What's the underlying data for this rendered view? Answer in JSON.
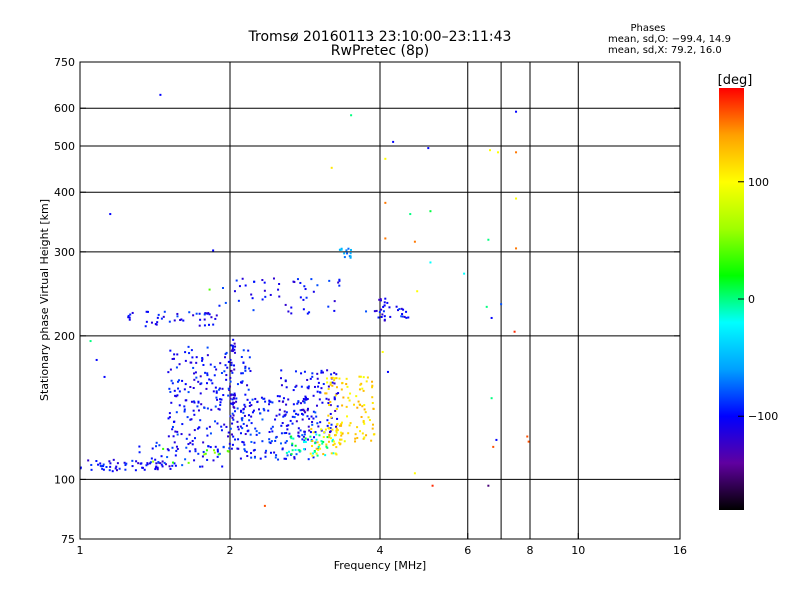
{
  "chart_data": {
    "type": "scatter",
    "title": "Tromsø 20160113 23:10:00–23:11:43",
    "subtitle": "RwPretec (8p)",
    "xlabel": "Frequency [MHz]",
    "ylabel": "Stationary phase Virtual Height [km]",
    "x_scale": "log",
    "y_scale": "log",
    "xlim": [
      1,
      16
    ],
    "ylim": [
      75,
      750
    ],
    "x_ticks": [
      1,
      2,
      4,
      6,
      8,
      10,
      16
    ],
    "x_tick_labels": [
      "1",
      "2",
      "4",
      "6",
      "8",
      "10",
      "16"
    ],
    "x_grid": [
      2,
      4,
      6,
      7,
      8,
      10
    ],
    "y_ticks": [
      75,
      100,
      200,
      300,
      400,
      500,
      600,
      750
    ],
    "y_tick_labels": [
      "75",
      "100",
      "200",
      "300",
      "400",
      "500",
      "600",
      "750"
    ],
    "y_grid": [
      100,
      200,
      300,
      400,
      500,
      600
    ],
    "grid": true,
    "stats": {
      "heading": "Phases",
      "line_o": "mean, sd,O: −99.4, 14.9",
      "line_x": "mean, sd,X:  79.2, 16.0"
    },
    "colorbar": {
      "label": "[deg]",
      "range": [
        -180,
        180
      ],
      "ticks": [
        100,
        0,
        -100
      ],
      "tick_labels": [
        "100",
        "0",
        "−100"
      ],
      "colors": [
        "#000000",
        "#6000a0",
        "#0000ff",
        "#00a0ff",
        "#00ffff",
        "#00ff00",
        "#a0ff00",
        "#ffff00",
        "#ffa000",
        "#ff0000"
      ]
    },
    "clusters": [
      {
        "x": [
          1.0,
          1.55
        ],
        "y": [
          104,
          110
        ],
        "n": 60,
        "phase": -105
      },
      {
        "x": [
          1.25,
          1.95
        ],
        "y": [
          106,
          120
        ],
        "n": 40,
        "phase": -95
      },
      {
        "x": [
          1.4,
          2.0
        ],
        "y": [
          108,
          118
        ],
        "n": 12,
        "phase": 40
      },
      {
        "x": [
          1.5,
          2.2
        ],
        "y": [
          115,
          190
        ],
        "n": 230,
        "phase": -100
      },
      {
        "x": [
          2.0,
          2.05
        ],
        "y": [
          120,
          200
        ],
        "n": 35,
        "phase": -110
      },
      {
        "x": [
          2.1,
          3.0
        ],
        "y": [
          110,
          150
        ],
        "n": 150,
        "phase": -95
      },
      {
        "x": [
          2.5,
          3.3
        ],
        "y": [
          125,
          170
        ],
        "n": 110,
        "phase": -105
      },
      {
        "x": [
          2.6,
          3.3
        ],
        "y": [
          112,
          125
        ],
        "n": 40,
        "phase": -5
      },
      {
        "x": [
          2.9,
          3.4
        ],
        "y": [
          112,
          128
        ],
        "n": 40,
        "phase": 110
      },
      {
        "x": [
          3.1,
          3.9
        ],
        "y": [
          120,
          165
        ],
        "n": 100,
        "phase": 115
      },
      {
        "x": [
          1.2,
          1.9
        ],
        "y": [
          208,
          225
        ],
        "n": 45,
        "phase": -100
      },
      {
        "x": [
          1.9,
          3.4
        ],
        "y": [
          222,
          265
        ],
        "n": 50,
        "phase": -100
      },
      {
        "x": [
          3.3,
          3.5
        ],
        "y": [
          290,
          305
        ],
        "n": 14,
        "phase": -60
      },
      {
        "x": [
          3.9,
          4.2
        ],
        "y": [
          215,
          240
        ],
        "n": 22,
        "phase": -105
      },
      {
        "x": [
          4.3,
          4.6
        ],
        "y": [
          218,
          235
        ],
        "n": 12,
        "phase": -100
      }
    ],
    "points": [
      {
        "x": 1.45,
        "y": 640,
        "phase": -100
      },
      {
        "x": 1.15,
        "y": 360,
        "phase": -100
      },
      {
        "x": 1.05,
        "y": 195,
        "phase": 0
      },
      {
        "x": 1.08,
        "y": 178,
        "phase": -100
      },
      {
        "x": 1.12,
        "y": 164,
        "phase": -100
      },
      {
        "x": 1.85,
        "y": 302,
        "phase": -100
      },
      {
        "x": 1.82,
        "y": 250,
        "phase": 40
      },
      {
        "x": 2.15,
        "y": 255,
        "phase": -100
      },
      {
        "x": 2.35,
        "y": 88,
        "phase": 160
      },
      {
        "x": 3.5,
        "y": 580,
        "phase": 0
      },
      {
        "x": 3.2,
        "y": 450,
        "phase": 110
      },
      {
        "x": 3.75,
        "y": 225,
        "phase": -80
      },
      {
        "x": 4.25,
        "y": 510,
        "phase": -100
      },
      {
        "x": 4.1,
        "y": 470,
        "phase": 100
      },
      {
        "x": 4.1,
        "y": 380,
        "phase": 150
      },
      {
        "x": 4.1,
        "y": 320,
        "phase": 150
      },
      {
        "x": 4.05,
        "y": 185,
        "phase": 100
      },
      {
        "x": 4.15,
        "y": 168,
        "phase": -100
      },
      {
        "x": 4.6,
        "y": 360,
        "phase": 0
      },
      {
        "x": 4.7,
        "y": 315,
        "phase": 150
      },
      {
        "x": 4.7,
        "y": 103,
        "phase": 100
      },
      {
        "x": 4.75,
        "y": 248,
        "phase": 100
      },
      {
        "x": 5.0,
        "y": 495,
        "phase": -100
      },
      {
        "x": 5.05,
        "y": 365,
        "phase": 10
      },
      {
        "x": 5.05,
        "y": 285,
        "phase": -20
      },
      {
        "x": 5.1,
        "y": 97,
        "phase": 170
      },
      {
        "x": 5.9,
        "y": 270,
        "phase": -20
      },
      {
        "x": 6.55,
        "y": 230,
        "phase": 0
      },
      {
        "x": 6.6,
        "y": 318,
        "phase": 0
      },
      {
        "x": 6.65,
        "y": 490,
        "phase": 100
      },
      {
        "x": 6.7,
        "y": 148,
        "phase": 0
      },
      {
        "x": 6.7,
        "y": 218,
        "phase": -100
      },
      {
        "x": 6.75,
        "y": 117,
        "phase": 160
      },
      {
        "x": 6.6,
        "y": 97,
        "phase": -150
      },
      {
        "x": 6.9,
        "y": 485,
        "phase": 100
      },
      {
        "x": 7.0,
        "y": 233,
        "phase": -80
      },
      {
        "x": 6.85,
        "y": 121,
        "phase": -100
      },
      {
        "x": 7.5,
        "y": 590,
        "phase": -100
      },
      {
        "x": 7.5,
        "y": 485,
        "phase": 150
      },
      {
        "x": 7.5,
        "y": 388,
        "phase": 100
      },
      {
        "x": 7.5,
        "y": 305,
        "phase": 150
      },
      {
        "x": 7.45,
        "y": 204,
        "phase": 170
      },
      {
        "x": 7.9,
        "y": 123,
        "phase": 160
      },
      {
        "x": 7.95,
        "y": 120,
        "phase": 160
      }
    ]
  }
}
